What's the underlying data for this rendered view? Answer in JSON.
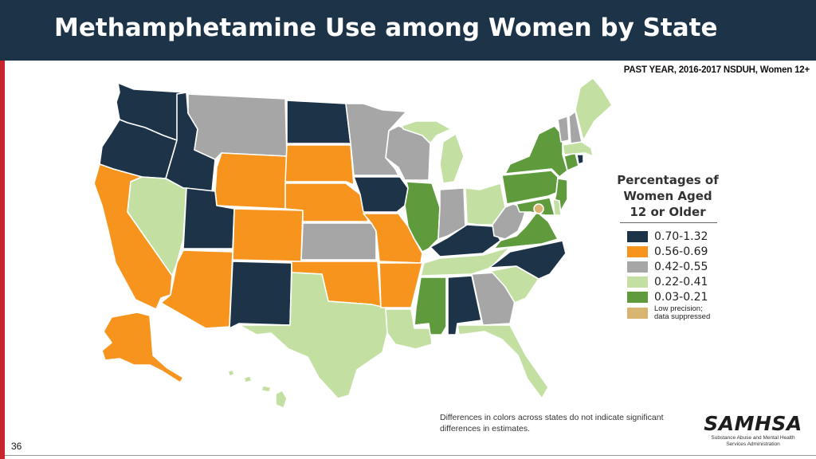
{
  "slide": {
    "title": "Methamphetamine Use among Women by State",
    "subtitle": "PAST YEAR, 2016-2017 NSDUH, Women 12+",
    "number": "36",
    "footnote": "Differences in colors across states do not indicate significant differences in estimates."
  },
  "legend": {
    "title": "Percentages of Women Aged 12 or Older",
    "items": [
      {
        "key": "dark",
        "label": "0.70-1.32",
        "color": "#1d3348"
      },
      {
        "key": "orange",
        "label": "0.56-0.69",
        "color": "#f7941d"
      },
      {
        "key": "gray",
        "label": "0.42-0.55",
        "color": "#a6a6a6"
      },
      {
        "key": "light",
        "label": "0.22-0.41",
        "color": "#c3e0a2"
      },
      {
        "key": "green",
        "label": "0.03-0.21",
        "color": "#5f9b3c"
      },
      {
        "key": "suppressed",
        "label": "Low precision;\ndata suppressed",
        "color": "#d8b672"
      }
    ]
  },
  "states": {
    "WA": "dark",
    "OR": "dark",
    "ID": "dark",
    "MT": "gray",
    "WY": "orange",
    "ND": "dark",
    "SD": "orange",
    "NE": "orange",
    "MN": "gray",
    "IA": "dark",
    "WI": "gray",
    "MI": "light",
    "IL": "green",
    "IN": "gray",
    "OH": "light",
    "KY": "dark",
    "TN": "light",
    "MO": "orange",
    "KS": "gray",
    "OK": "orange",
    "TX": "light",
    "NM": "dark",
    "AZ": "orange",
    "UT": "dark",
    "NV": "light",
    "CA": "orange",
    "CO": "orange",
    "AR": "orange",
    "LA": "light",
    "MS": "green",
    "AL": "dark",
    "GA": "gray",
    "FL": "light",
    "SC": "light",
    "NC": "dark",
    "VA": "green",
    "WV": "gray",
    "PA": "green",
    "NY": "green",
    "VT": "gray",
    "NH": "gray",
    "ME": "light",
    "MA": "light",
    "RI": "dark",
    "CT": "green",
    "NJ": "green",
    "DE": "light",
    "MD": "green",
    "DC": "suppressed",
    "AK": "orange",
    "HI": "light"
  },
  "logo": {
    "wordmark": "SAMHSA",
    "tagline": "Substance Abuse and Mental Health Services Administration"
  }
}
